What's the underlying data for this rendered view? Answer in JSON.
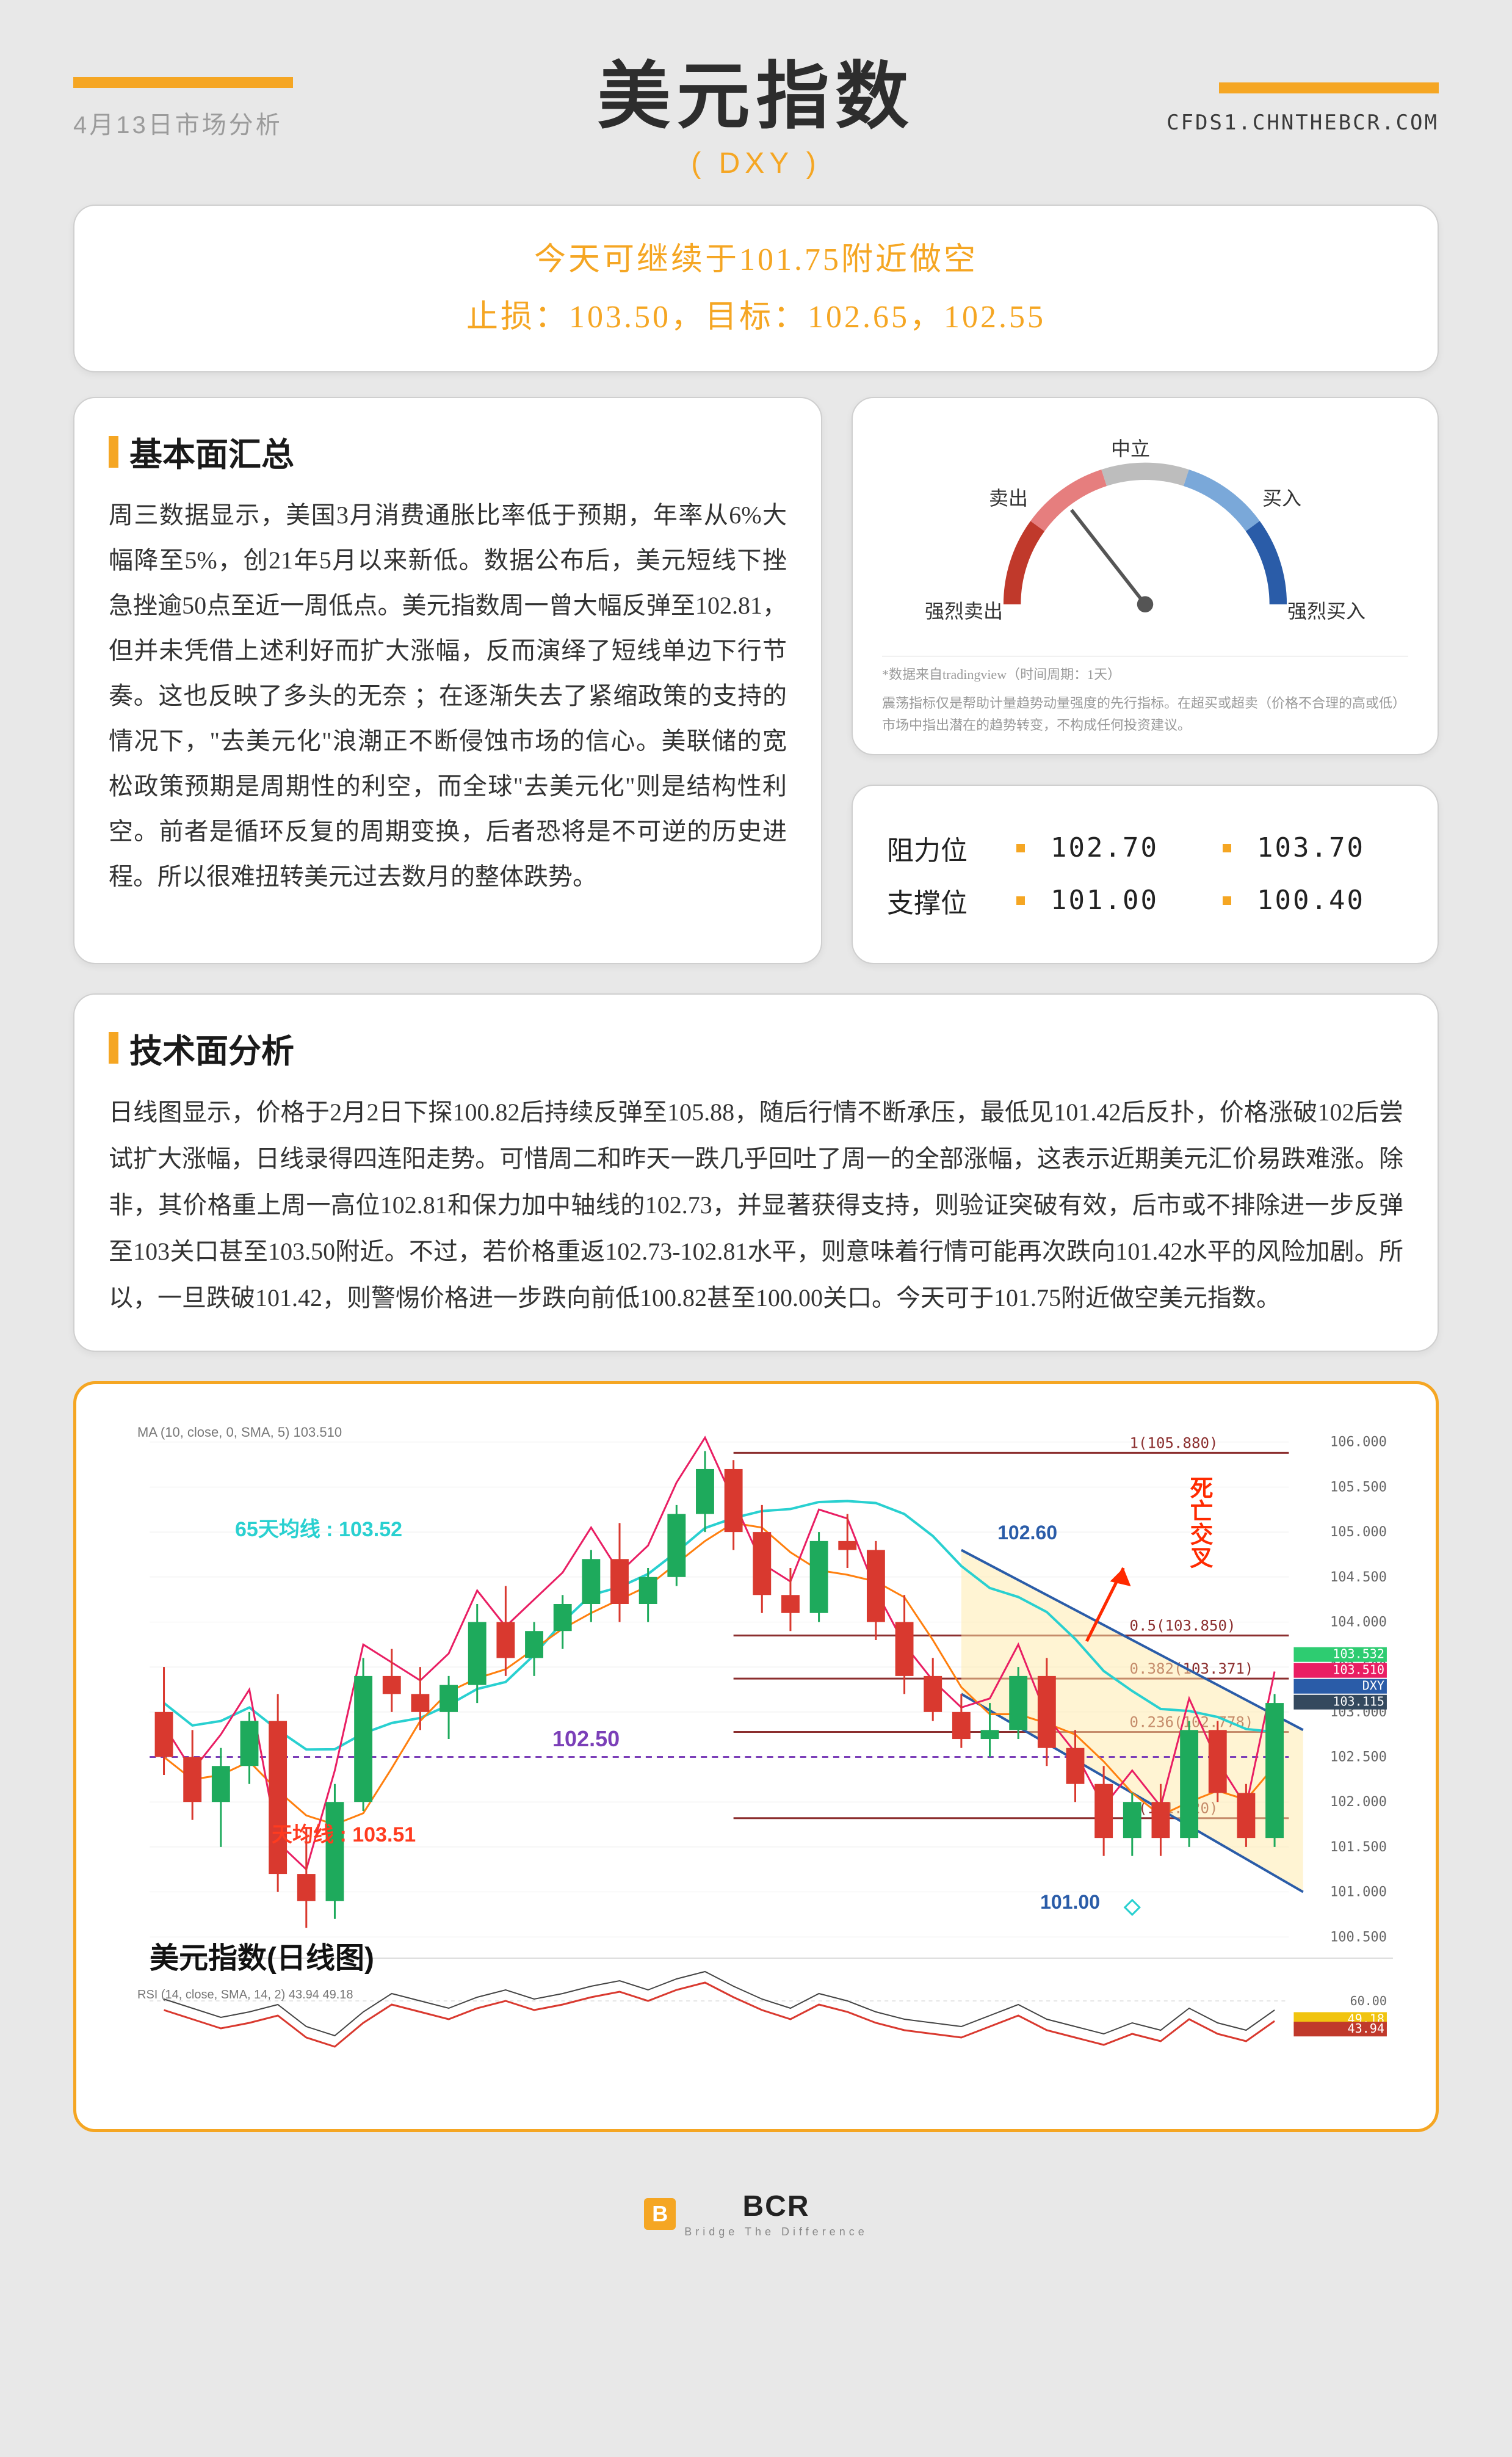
{
  "header": {
    "date": "4月13日市场分析",
    "title": "美元指数",
    "subtitle": "( DXY )",
    "url": "CFDS1.CHNTHEBCR.COM",
    "accent_color": "#f5a623"
  },
  "banner": {
    "line1": "今天可继续于101.75附近做空",
    "line2": "止损：103.50，目标：102.65，102.55"
  },
  "fundamental": {
    "title": "基本面汇总",
    "body": "周三数据显示，美国3月消费通胀比率低于预期，年率从6%大幅降至5%，创21年5月以来新低。数据公布后，美元短线下挫急挫逾50点至近一周低点。美元指数周一曾大幅反弹至102.81，但并未凭借上述利好而扩大涨幅，反而演绎了短线单边下行节奏。这也反映了多头的无奈 ；在逐渐失去了紧缩政策的支持的情况下，\"去美元化\"浪潮正不断侵蚀市场的信心。美联储的宽松政策预期是周期性的利空，而全球\"去美元化\"则是结构性利空。前者是循环反复的周期变换，后者恐将是不可逆的历史进程。所以很难扭转美元过去数月的整体跌势。"
  },
  "gauge": {
    "labels": {
      "strong_sell": "强烈卖出",
      "sell": "卖出",
      "neutral": "中立",
      "buy": "买入",
      "strong_buy": "强烈买入"
    },
    "pointer_zone": "sell",
    "colors": {
      "strong_sell": "#c0392b",
      "sell": "#e67e7e",
      "neutral": "#bdbdbd",
      "buy": "#7aa8d9",
      "strong_buy": "#2a5ca8"
    },
    "note_line1": "*数据来自tradingview（时间周期：1天）",
    "note_line2": "震荡指标仅是帮助计量趋势动量强度的先行指标。在超买或超卖（价格不合理的高或低）市场中指出潜在的趋势转变，不构成任何投资建议。"
  },
  "levels": {
    "resistance_label": "阻力位",
    "support_label": "支撑位",
    "resistance": [
      "102.70",
      "103.70"
    ],
    "support": [
      "101.00",
      "100.40"
    ]
  },
  "technical": {
    "title": "技术面分析",
    "body": "日线图显示，价格于2月2日下探100.82后持续反弹至105.88，随后行情不断承压，最低见101.42后反扑，价格涨破102后尝试扩大涨幅，日线录得四连阳走势。可惜周二和昨天一跌几乎回吐了周一的全部涨幅，这表示近期美元汇价易跌难涨。除非，其价格重上周一高位102.81和保力加中轴线的102.73，并显著获得支持，则验证突破有效，后市或不排除进一步反弹至103关口甚至103.50附近。不过，若价格重返102.73-102.81水平，则意味着行情可能再次跌向101.42水平的风险加剧。所以，一旦跌破101.42，则警惕价格进一步跌向前低100.82甚至100.00关口。今天可于101.75附近做空美元指数。"
  },
  "chart": {
    "title": "美元指数(日线图)",
    "ma_legend": "MA (10, close, 0, SMA, 5)  103.510",
    "rsi_legend": "RSI (14, close, SMA, 14, 2)  43.94  49.18",
    "annotations": {
      "ma65": "65天均线 : 103.52",
      "ma_orange": "天均线 : 103.51",
      "mid_purple": "102.50",
      "death_cross": "死亡交叉",
      "channel_top": "102.60",
      "channel_bottom": "101.00"
    },
    "fib_levels": [
      {
        "ratio": "1",
        "value": "105.880"
      },
      {
        "ratio": "0.5",
        "value": "103.850"
      },
      {
        "ratio": "0.382",
        "value": "103.371"
      },
      {
        "ratio": "0.236",
        "value": "102.778"
      },
      {
        "ratio": "0",
        "value": "101.820"
      }
    ],
    "y_axis": [
      "106.000",
      "105.500",
      "105.000",
      "104.500",
      "104.000",
      "103.500",
      "103.000",
      "102.500",
      "102.000",
      "101.500",
      "101.000",
      "100.500"
    ],
    "y_badges": [
      {
        "text": "103.532",
        "bg": "#2ecc71"
      },
      {
        "text": "103.510",
        "bg": "#e91e63"
      },
      {
        "text": "DXY",
        "bg": "#2a5ca8"
      },
      {
        "text": "103.115",
        "bg": "#34495e"
      }
    ],
    "rsi_y": [
      "60.00"
    ],
    "rsi_badges": [
      {
        "text": "49.18",
        "bg": "#f1c40f"
      },
      {
        "text": "43.94",
        "bg": "#c0392b"
      }
    ],
    "colors": {
      "up_candle": "#1eaa5c",
      "down_candle": "#d9392f",
      "ma65": "#29d0d0",
      "ma_orange": "#ff7f0e",
      "purple_dash": "#7b3fb8",
      "fib_line": "#8b2e2e",
      "channel": "#2a5ca8",
      "channel_fill": "#ffe9a8",
      "rsi_line": "#d9392f",
      "rsi_ma": "#444"
    },
    "candles": [
      {
        "o": 103.0,
        "h": 103.5,
        "l": 102.3,
        "c": 102.5,
        "dir": "d"
      },
      {
        "o": 102.5,
        "h": 102.8,
        "l": 101.8,
        "c": 102.0,
        "dir": "d"
      },
      {
        "o": 102.0,
        "h": 102.6,
        "l": 101.5,
        "c": 102.4,
        "dir": "u"
      },
      {
        "o": 102.4,
        "h": 103.0,
        "l": 102.2,
        "c": 102.9,
        "dir": "u"
      },
      {
        "o": 102.9,
        "h": 103.2,
        "l": 101.0,
        "c": 101.2,
        "dir": "d"
      },
      {
        "o": 101.2,
        "h": 101.7,
        "l": 100.6,
        "c": 100.9,
        "dir": "d"
      },
      {
        "o": 100.9,
        "h": 102.2,
        "l": 100.7,
        "c": 102.0,
        "dir": "u"
      },
      {
        "o": 102.0,
        "h": 103.6,
        "l": 101.9,
        "c": 103.4,
        "dir": "u"
      },
      {
        "o": 103.4,
        "h": 103.7,
        "l": 103.0,
        "c": 103.2,
        "dir": "d"
      },
      {
        "o": 103.2,
        "h": 103.5,
        "l": 102.8,
        "c": 103.0,
        "dir": "d"
      },
      {
        "o": 103.0,
        "h": 103.4,
        "l": 102.7,
        "c": 103.3,
        "dir": "u"
      },
      {
        "o": 103.3,
        "h": 104.2,
        "l": 103.1,
        "c": 104.0,
        "dir": "u"
      },
      {
        "o": 104.0,
        "h": 104.4,
        "l": 103.4,
        "c": 103.6,
        "dir": "d"
      },
      {
        "o": 103.6,
        "h": 104.0,
        "l": 103.4,
        "c": 103.9,
        "dir": "u"
      },
      {
        "o": 103.9,
        "h": 104.3,
        "l": 103.7,
        "c": 104.2,
        "dir": "u"
      },
      {
        "o": 104.2,
        "h": 104.8,
        "l": 104.0,
        "c": 104.7,
        "dir": "u"
      },
      {
        "o": 104.7,
        "h": 105.1,
        "l": 104.0,
        "c": 104.2,
        "dir": "d"
      },
      {
        "o": 104.2,
        "h": 104.6,
        "l": 104.0,
        "c": 104.5,
        "dir": "u"
      },
      {
        "o": 104.5,
        "h": 105.3,
        "l": 104.4,
        "c": 105.2,
        "dir": "u"
      },
      {
        "o": 105.2,
        "h": 105.9,
        "l": 105.0,
        "c": 105.7,
        "dir": "u"
      },
      {
        "o": 105.7,
        "h": 105.8,
        "l": 104.8,
        "c": 105.0,
        "dir": "d"
      },
      {
        "o": 105.0,
        "h": 105.3,
        "l": 104.1,
        "c": 104.3,
        "dir": "d"
      },
      {
        "o": 104.3,
        "h": 104.6,
        "l": 103.9,
        "c": 104.1,
        "dir": "d"
      },
      {
        "o": 104.1,
        "h": 105.0,
        "l": 104.0,
        "c": 104.9,
        "dir": "u"
      },
      {
        "o": 104.9,
        "h": 105.2,
        "l": 104.6,
        "c": 104.8,
        "dir": "d"
      },
      {
        "o": 104.8,
        "h": 104.9,
        "l": 103.8,
        "c": 104.0,
        "dir": "d"
      },
      {
        "o": 104.0,
        "h": 104.3,
        "l": 103.2,
        "c": 103.4,
        "dir": "d"
      },
      {
        "o": 103.4,
        "h": 103.6,
        "l": 102.9,
        "c": 103.0,
        "dir": "d"
      },
      {
        "o": 103.0,
        "h": 103.2,
        "l": 102.6,
        "c": 102.7,
        "dir": "d"
      },
      {
        "o": 102.7,
        "h": 103.1,
        "l": 102.5,
        "c": 102.8,
        "dir": "u"
      },
      {
        "o": 102.8,
        "h": 103.5,
        "l": 102.7,
        "c": 103.4,
        "dir": "u"
      },
      {
        "o": 103.4,
        "h": 103.6,
        "l": 102.4,
        "c": 102.6,
        "dir": "d"
      },
      {
        "o": 102.6,
        "h": 102.8,
        "l": 102.0,
        "c": 102.2,
        "dir": "d"
      },
      {
        "o": 102.2,
        "h": 102.4,
        "l": 101.4,
        "c": 101.6,
        "dir": "d"
      },
      {
        "o": 101.6,
        "h": 102.1,
        "l": 101.4,
        "c": 102.0,
        "dir": "u"
      },
      {
        "o": 102.0,
        "h": 102.2,
        "l": 101.4,
        "c": 101.6,
        "dir": "d"
      },
      {
        "o": 101.6,
        "h": 102.9,
        "l": 101.5,
        "c": 102.8,
        "dir": "u"
      },
      {
        "o": 102.8,
        "h": 102.9,
        "l": 102.0,
        "c": 102.1,
        "dir": "d"
      },
      {
        "o": 102.1,
        "h": 102.2,
        "l": 101.5,
        "c": 101.6,
        "dir": "d"
      },
      {
        "o": 101.6,
        "h": 103.2,
        "l": 101.5,
        "c": 103.1,
        "dir": "u"
      }
    ],
    "rsi_values": [
      55,
      50,
      45,
      48,
      52,
      40,
      35,
      48,
      58,
      54,
      50,
      56,
      60,
      55,
      58,
      62,
      65,
      60,
      66,
      70,
      62,
      55,
      50,
      58,
      54,
      48,
      44,
      42,
      40,
      46,
      52,
      44,
      40,
      36,
      42,
      38,
      50,
      42,
      38,
      49
    ]
  },
  "footer": {
    "brand": "BCR",
    "tagline": "Bridge The Difference"
  }
}
